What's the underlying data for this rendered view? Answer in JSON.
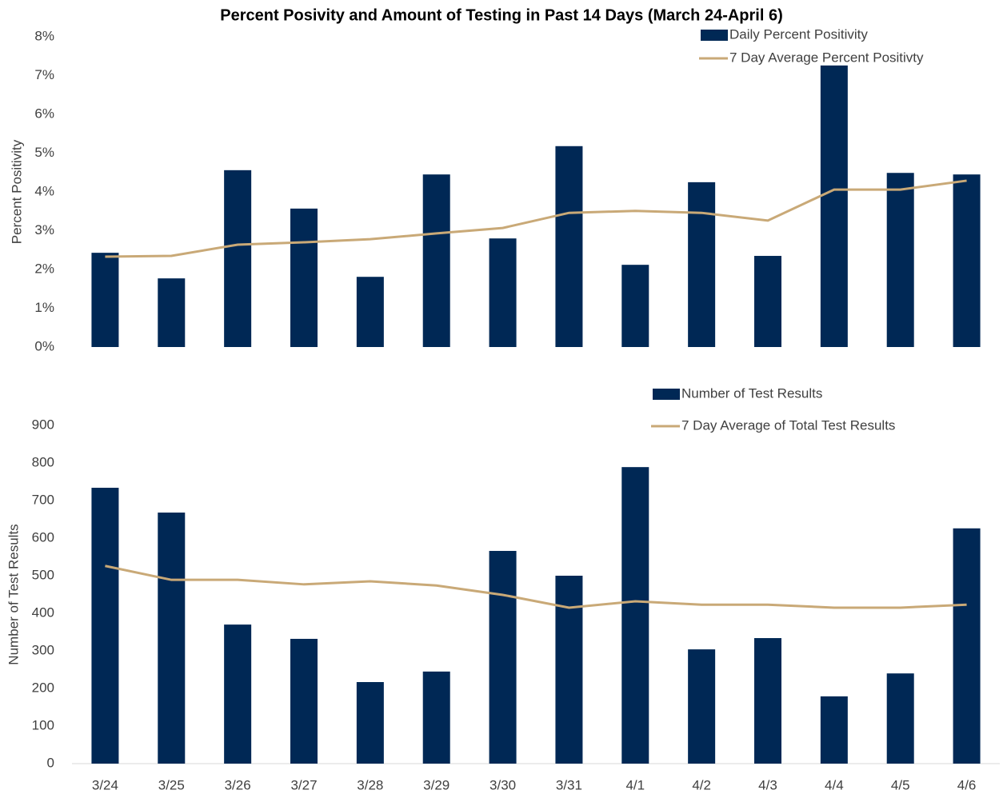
{
  "chart_data": [
    {
      "type": "bar",
      "title": "Percent Posivity and Amount of Testing in Past 14 Days (March 24-April 6)",
      "y_label": "Percent Positivity",
      "ylim": [
        0,
        8
      ],
      "yticks": [
        {
          "value": 0,
          "label": "0%"
        },
        {
          "value": 1,
          "label": "1%"
        },
        {
          "value": 2,
          "label": "2%"
        },
        {
          "value": 3,
          "label": "3%"
        },
        {
          "value": 4,
          "label": "4%"
        },
        {
          "value": 5,
          "label": "5%"
        },
        {
          "value": 6,
          "label": "6%"
        },
        {
          "value": 7,
          "label": "7%"
        },
        {
          "value": 8,
          "label": "8%"
        }
      ],
      "series": [
        {
          "name": "Daily Percent Positivity",
          "type": "bar",
          "color": "#002855",
          "values": [
            2.43,
            1.77,
            4.56,
            3.57,
            1.81,
            4.45,
            2.8,
            5.18,
            2.12,
            4.25,
            2.35,
            7.26,
            4.49,
            4.45
          ]
        },
        {
          "name": "7 Day Average Percent Positivty",
          "type": "line",
          "color": "#c9a977",
          "values": [
            2.33,
            2.35,
            2.64,
            2.7,
            2.78,
            2.93,
            3.07,
            3.46,
            3.51,
            3.46,
            3.26,
            4.06,
            4.06,
            4.29
          ]
        }
      ]
    },
    {
      "type": "bar",
      "y_label": "Number of Test Results",
      "categories": [
        "3/24",
        "3/25",
        "3/26",
        "3/27",
        "3/28",
        "3/29",
        "3/30",
        "3/31",
        "4/1",
        "4/2",
        "4/3",
        "4/4",
        "4/5",
        "4/6"
      ],
      "ylim": [
        0,
        900
      ],
      "yticks": [
        0,
        100,
        200,
        300,
        400,
        500,
        600,
        700,
        800,
        900
      ],
      "series": [
        {
          "name": "Number of Test Results",
          "type": "bar",
          "color": "#002855",
          "values": [
            734,
            668,
            370,
            332,
            217,
            245,
            566,
            500,
            789,
            304,
            334,
            179,
            240,
            626
          ]
        },
        {
          "name": "7 Day Average of Total Test Results",
          "type": "line",
          "color": "#c9a977",
          "values": [
            526,
            489,
            489,
            477,
            485,
            474,
            449,
            415,
            432,
            423,
            423,
            415,
            415,
            423
          ]
        }
      ]
    }
  ]
}
